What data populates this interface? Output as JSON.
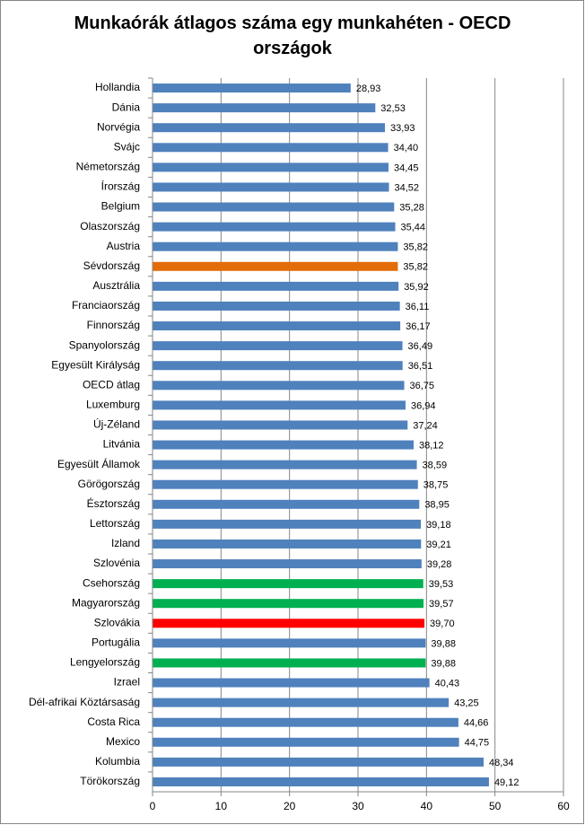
{
  "chart_data": {
    "type": "hbar",
    "title": "Munkaórák átlagos száma egy munkahéten - OECD országok",
    "categories": [
      "Hollandia",
      "Dánia",
      "Norvégia",
      "Svájc",
      "Németország",
      "Írország",
      "Belgium",
      "Olaszország",
      "Austria",
      "Sévdország",
      "Ausztrália",
      "Franciaország",
      "Finnország",
      "Spanyolország",
      "Egyesült Királyság",
      "OECD átlag",
      "Luxemburg",
      "Új-Zéland",
      "Litvánia",
      "Egyesült Államok",
      "Görögország",
      "Észtország",
      "Lettország",
      "Izland",
      "Szlovénia",
      "Csehország",
      "Magyarország",
      "Szlovákia",
      "Portugália",
      "Lengyelország",
      "Izrael",
      "Dél-afrikai Köztársaság",
      "Costa Rica",
      "Mexico",
      "Kolumbia",
      "Törökország"
    ],
    "values": [
      28.93,
      32.53,
      33.93,
      34.4,
      34.45,
      34.52,
      35.28,
      35.44,
      35.82,
      35.82,
      35.92,
      36.11,
      36.17,
      36.49,
      36.51,
      36.75,
      36.94,
      37.24,
      38.12,
      38.59,
      38.75,
      38.95,
      39.18,
      39.21,
      39.28,
      39.53,
      39.57,
      39.7,
      39.88,
      39.88,
      40.43,
      43.25,
      44.66,
      44.75,
      48.34,
      49.12
    ],
    "value_labels": [
      "28,93",
      "32,53",
      "33,93",
      "34,40",
      "34,45",
      "34,52",
      "35,28",
      "35,44",
      "35,82",
      "35,82",
      "35,92",
      "36,11",
      "36,17",
      "36,49",
      "36,51",
      "36,75",
      "36,94",
      "37,24",
      "38,12",
      "38,59",
      "38,75",
      "38,95",
      "39,18",
      "39,21",
      "39,28",
      "39,53",
      "39,57",
      "39,70",
      "39,88",
      "39,88",
      "40,43",
      "43,25",
      "44,66",
      "44,75",
      "48,34",
      "49,12"
    ],
    "colors": [
      "#4f81bd",
      "#4f81bd",
      "#4f81bd",
      "#4f81bd",
      "#4f81bd",
      "#4f81bd",
      "#4f81bd",
      "#4f81bd",
      "#4f81bd",
      "#e36c09",
      "#4f81bd",
      "#4f81bd",
      "#4f81bd",
      "#4f81bd",
      "#4f81bd",
      "#4f81bd",
      "#4f81bd",
      "#4f81bd",
      "#4f81bd",
      "#4f81bd",
      "#4f81bd",
      "#4f81bd",
      "#4f81bd",
      "#4f81bd",
      "#4f81bd",
      "#00b050",
      "#00b050",
      "#ff0000",
      "#4f81bd",
      "#00b050",
      "#4f81bd",
      "#4f81bd",
      "#4f81bd",
      "#4f81bd",
      "#4f81bd",
      "#4f81bd"
    ],
    "xlim": [
      0,
      60
    ],
    "xticks": [
      0,
      10,
      20,
      30,
      40,
      50,
      60
    ],
    "grid": true
  }
}
